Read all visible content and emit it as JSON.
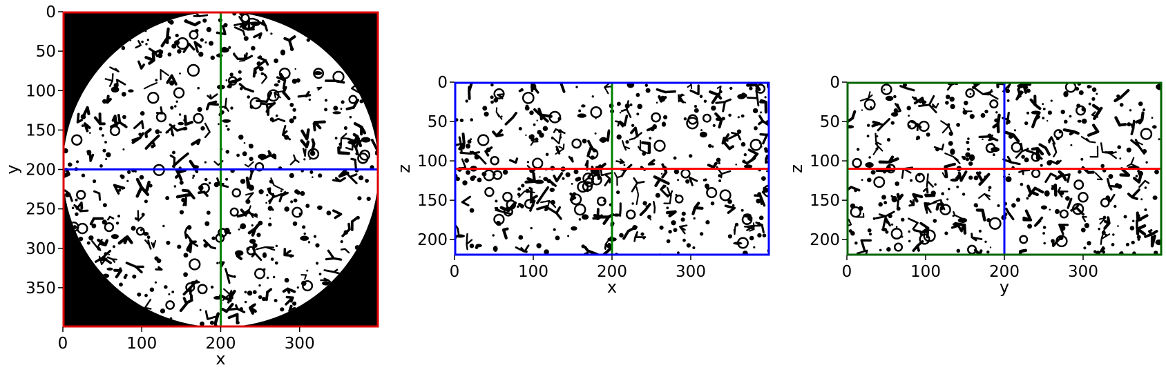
{
  "figure": {
    "background": "#ffffff",
    "material_color": "#ffffff",
    "pore_color": "#000000"
  },
  "panels": [
    {
      "id": "xy",
      "xlabel": "x",
      "ylabel": "y",
      "x_range": [
        0,
        400
      ],
      "y_range": [
        0,
        400
      ],
      "x_ticks": [
        "0",
        "100",
        "200",
        "300"
      ],
      "y_ticks": [
        "0",
        "50",
        "100",
        "150",
        "200",
        "250",
        "300",
        "350"
      ],
      "frame_color": "#e00000",
      "circular_mask": true,
      "vertical_line": {
        "value": 200,
        "color": "#008000"
      },
      "horizontal_line": {
        "value": 200,
        "color": "#0000ff"
      }
    },
    {
      "id": "xz",
      "xlabel": "x",
      "ylabel": "z",
      "x_range": [
        0,
        400
      ],
      "y_range": [
        0,
        220
      ],
      "x_ticks": [
        "0",
        "100",
        "200",
        "300"
      ],
      "y_ticks": [
        "0",
        "50",
        "100",
        "150",
        "200"
      ],
      "frame_color": "#0000ff",
      "circular_mask": false,
      "vertical_line": {
        "value": 200,
        "color": "#008000"
      },
      "horizontal_line": {
        "value": 110,
        "color": "#ff0000"
      }
    },
    {
      "id": "yz",
      "xlabel": "y",
      "ylabel": "z",
      "x_range": [
        0,
        400
      ],
      "y_range": [
        0,
        220
      ],
      "x_ticks": [
        "0",
        "100",
        "200",
        "300"
      ],
      "y_ticks": [
        "0",
        "50",
        "100",
        "150",
        "200"
      ],
      "frame_color": "#006400",
      "circular_mask": false,
      "vertical_line": {
        "value": 200,
        "color": "#0000ff"
      },
      "horizontal_line": {
        "value": 110,
        "color": "#ff0000"
      }
    }
  ]
}
